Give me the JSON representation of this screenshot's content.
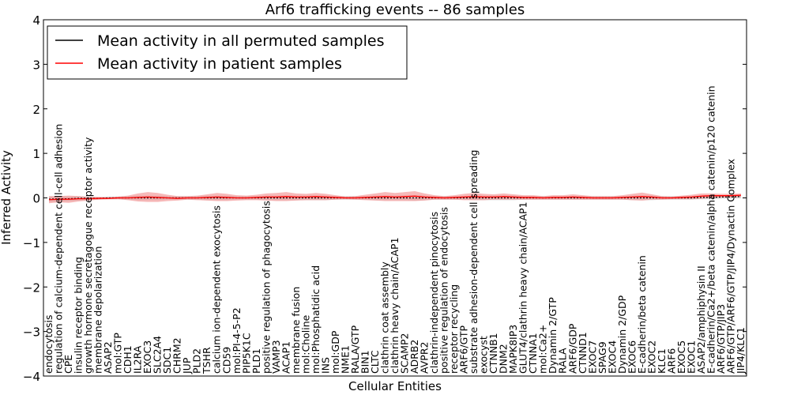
{
  "chart_data": {
    "type": "line",
    "title": "Arf6 trafficking events -- 86 samples",
    "xlabel": "Cellular Entities",
    "ylabel": "Inferred Activity",
    "ylim": [
      -4,
      4
    ],
    "yticks": [
      -4,
      -3,
      -2,
      -1,
      0,
      1,
      2,
      3,
      4
    ],
    "legend": {
      "position": "top-left",
      "entries": [
        {
          "label": "Mean activity in all permuted samples",
          "color": "#000000"
        },
        {
          "label": "Mean activity in patient samples",
          "color": "#ff0000"
        }
      ]
    },
    "colors": {
      "permuted": "#000000",
      "patient": "#ff0000",
      "patient_band": "#f08080",
      "permuted_band": "#c8c8c8"
    },
    "categories": [
      "endocytosis",
      "regulation of calcium-dependent cell-cell adhesion",
      "CPE",
      "insulin receptor binding",
      "growth hormone secretagogue receptor activity",
      "membrane depolarization",
      "ASAP2",
      "mol:GTP",
      "CDH1",
      "IL2RA",
      "EXOC3",
      "SLC2A4",
      "SDC1",
      "CHRM2",
      "JUP",
      "PLD2",
      "TSHR",
      "calcium ion-dependent exocytosis",
      "CD59",
      "mol:PI-4-5-P2",
      "PIP5K1C",
      "PLD1",
      "positive regulation of phagocytosis",
      "VAMP3",
      "ACAP1",
      "membrane fusion",
      "mol:Choline",
      "mol:Phosphatidic acid",
      "INS",
      "mol:GDP",
      "NME1",
      "RALA/GTP",
      "BIN1",
      "CLTC",
      "clathrin coat assembly",
      "clathrin heavy chain/ACAP1",
      "SCAMP2",
      "ADRB2",
      "AVPR2",
      "clathrin-independent pinocytosis",
      "positive regulation of endocytosis",
      "receptor recycling",
      "ARF6/GTP",
      "substrate adhesion-dependent cell spreading",
      "exocyst",
      "CTNNB1",
      "DNM2",
      "MAPK8IP3",
      "GLUT4/clathrin heavy chain/ACAP1",
      "CTNNA1",
      "mol:Ca2+",
      "Dynamin 2/GTP",
      "RALA",
      "ARF6/GDP",
      "CTNND1",
      "EXOC7",
      "SPAG9",
      "EXOC4",
      "Dynamin 2/GDP",
      "EXOC6",
      "E-cadherin/beta catenin",
      "EXOC2",
      "KLC1",
      "ARF6",
      "EXOC5",
      "EXOC1",
      "ASAP2/amphiphysin II",
      "E-cadherin/Ca2+/beta catenin/alpha catenin/p120 catenin",
      "ARF6/GTP/JIP3",
      "ARF6/GTP/ARF6/GTP/JIP4/Dynactin Complex",
      "JIP4/KLC1"
    ],
    "series": [
      {
        "name": "Mean activity in all permuted samples",
        "values": [
          -0.03,
          -0.02,
          -0.02,
          -0.01,
          -0.01,
          -0.01,
          0,
          0,
          0,
          0,
          0,
          0,
          0,
          0,
          0,
          0,
          0,
          0,
          0,
          0,
          0,
          0,
          0,
          0,
          0,
          0,
          0,
          0,
          0,
          0,
          0,
          0,
          0,
          0,
          0,
          0,
          0,
          0,
          0,
          0,
          0,
          0,
          0,
          0,
          0,
          0,
          0,
          0,
          0,
          0,
          0,
          0,
          0,
          0,
          0,
          0,
          0,
          0,
          0,
          0,
          0,
          0,
          0,
          0,
          0,
          0,
          0.01,
          0.01,
          0.02,
          0.02,
          0.03
        ]
      },
      {
        "name": "Mean activity in patient samples",
        "values": [
          -0.04,
          -0.03,
          -0.03,
          -0.02,
          -0.02,
          -0.01,
          -0.01,
          0,
          0,
          0.01,
          0.02,
          0.01,
          0,
          -0.01,
          0,
          0,
          0.01,
          0.02,
          0.01,
          0,
          0,
          0.01,
          0.02,
          0.02,
          0.03,
          0.02,
          0.02,
          0.03,
          0.02,
          0.01,
          0,
          0,
          0.01,
          0.02,
          0.03,
          0.02,
          0.03,
          0.04,
          0.02,
          0.01,
          0,
          0.01,
          0.02,
          0.03,
          0.02,
          0.02,
          0.03,
          0.02,
          0.01,
          0.01,
          0,
          0.01,
          0.01,
          0.02,
          0.01,
          0,
          0,
          0,
          0.01,
          0.02,
          0.03,
          0.02,
          0,
          0,
          0.01,
          0.02,
          0.04,
          0.05,
          0.05,
          0.05,
          0.06
        ]
      }
    ],
    "bands": {
      "patient_halfwidth": [
        0.08,
        0.07,
        0.08,
        0.06,
        0.04,
        0.03,
        0.02,
        0.03,
        0.05,
        0.09,
        0.11,
        0.1,
        0.07,
        0.05,
        0.04,
        0.05,
        0.07,
        0.09,
        0.08,
        0.06,
        0.05,
        0.06,
        0.08,
        0.09,
        0.1,
        0.08,
        0.07,
        0.08,
        0.07,
        0.05,
        0.03,
        0.04,
        0.06,
        0.08,
        0.1,
        0.09,
        0.1,
        0.11,
        0.08,
        0.05,
        0.04,
        0.05,
        0.07,
        0.08,
        0.07,
        0.06,
        0.07,
        0.06,
        0.05,
        0.05,
        0.04,
        0.05,
        0.05,
        0.06,
        0.05,
        0.04,
        0.04,
        0.04,
        0.05,
        0.07,
        0.09,
        0.06,
        0.04,
        0.03,
        0.04,
        0.05,
        0.06,
        0.05,
        0.04,
        0.04,
        0.04
      ],
      "permuted_halfwidth": [
        0.06,
        0.06,
        0.05,
        0.05,
        0.04,
        0.03,
        0.03,
        0.03,
        0.04,
        0.05,
        0.05,
        0.05,
        0.04,
        0.04,
        0.04,
        0.04,
        0.05,
        0.05,
        0.05,
        0.04,
        0.04,
        0.04,
        0.05,
        0.05,
        0.05,
        0.05,
        0.05,
        0.05,
        0.05,
        0.04,
        0.04,
        0.04,
        0.04,
        0.05,
        0.05,
        0.05,
        0.05,
        0.06,
        0.05,
        0.04,
        0.04,
        0.04,
        0.04,
        0.05,
        0.05,
        0.05,
        0.05,
        0.05,
        0.04,
        0.04,
        0.04,
        0.04,
        0.04,
        0.04,
        0.04,
        0.04,
        0.04,
        0.04,
        0.04,
        0.05,
        0.05,
        0.05,
        0.04,
        0.04,
        0.04,
        0.04,
        0.04,
        0.04,
        0.04,
        0.04,
        0.04
      ]
    }
  }
}
